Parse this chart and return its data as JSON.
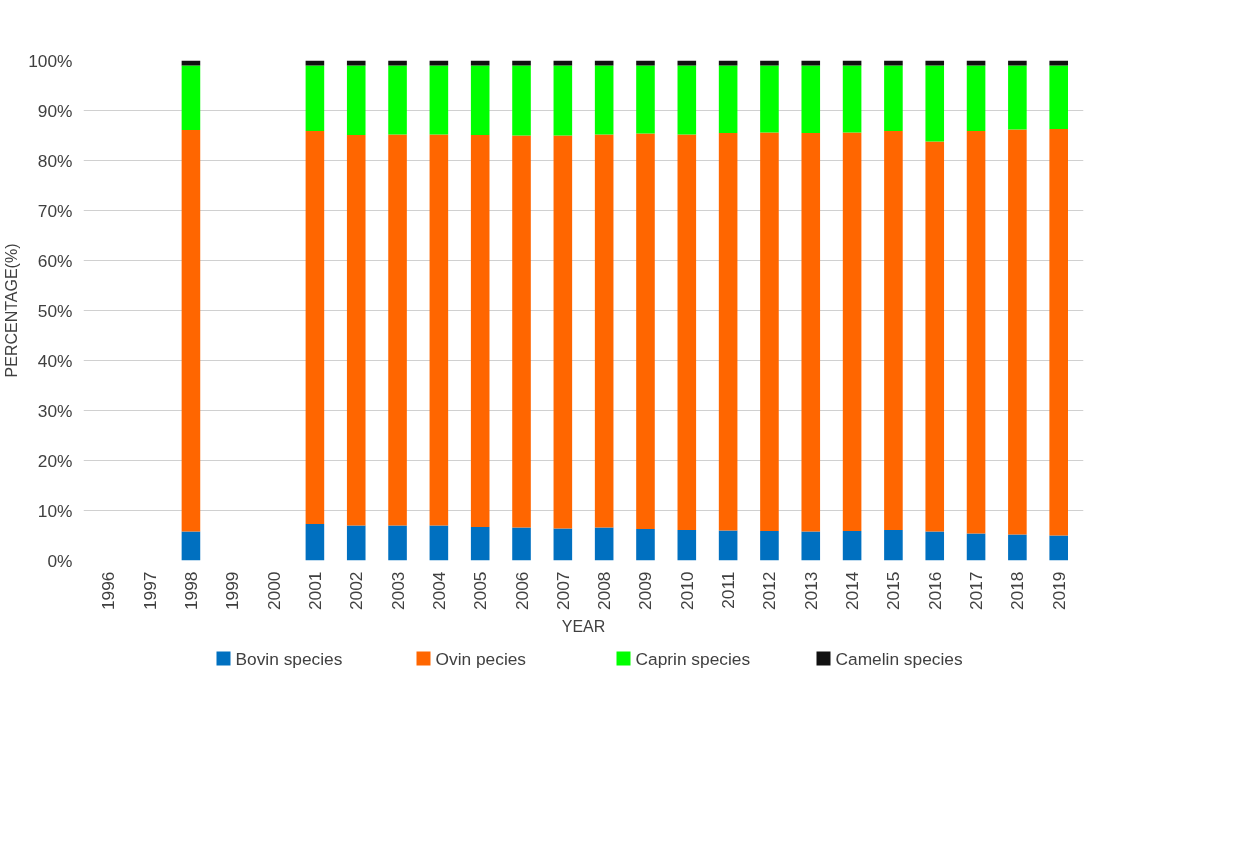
{
  "chart_data": {
    "type": "bar",
    "stacked": true,
    "xlabel": "YEAR",
    "ylabel": "PERCENTAGE(%)",
    "categories": [
      "1996",
      "1997",
      "1998",
      "1999",
      "2000",
      "2001",
      "2002",
      "2003",
      "2004",
      "2005",
      "2006",
      "2007",
      "2008",
      "2009",
      "2010",
      "2011",
      "2012",
      "2013",
      "2014",
      "2015",
      "2016",
      "2017",
      "2018",
      "2019"
    ],
    "series": [
      {
        "name": "Bovin species",
        "color": "#0070c0",
        "values": [
          null,
          null,
          5.8,
          null,
          null,
          7.3,
          7.0,
          7.0,
          7.0,
          6.7,
          6.6,
          6.4,
          6.6,
          6.3,
          6.1,
          6.0,
          5.9,
          5.8,
          5.9,
          6.1,
          5.8,
          5.4,
          5.2,
          5.0
        ]
      },
      {
        "name": "Ovin pecies",
        "color": "#ff6600",
        "values": [
          null,
          null,
          80.3,
          null,
          null,
          78.6,
          78.1,
          78.2,
          78.2,
          78.4,
          78.4,
          78.6,
          78.6,
          79.1,
          79.1,
          79.5,
          79.7,
          79.7,
          79.7,
          79.8,
          78.0,
          80.5,
          81.0,
          81.3
        ]
      },
      {
        "name": "Caprin species",
        "color": "#00ff00",
        "values": [
          null,
          null,
          12.9,
          null,
          null,
          13.1,
          13.9,
          13.8,
          13.8,
          13.9,
          14.0,
          14.0,
          13.8,
          13.6,
          13.8,
          13.5,
          13.4,
          13.5,
          13.4,
          13.1,
          15.2,
          13.1,
          12.8,
          12.7
        ]
      },
      {
        "name": "Camelin species",
        "color": "#111111",
        "values": [
          null,
          null,
          1,
          null,
          null,
          1,
          1,
          1,
          1,
          1,
          1,
          1,
          1,
          1,
          1,
          1,
          1,
          1,
          1,
          1,
          1,
          1,
          1,
          1
        ]
      }
    ],
    "ylim": [
      0,
      100
    ],
    "yticks": [
      {
        "value": 0,
        "label": "0%"
      },
      {
        "value": 10,
        "label": "10%"
      },
      {
        "value": 20,
        "label": "20%"
      },
      {
        "value": 30,
        "label": "30%"
      },
      {
        "value": 40,
        "label": "40%"
      },
      {
        "value": 50,
        "label": "50%"
      },
      {
        "value": 60,
        "label": "60%"
      },
      {
        "value": 70,
        "label": "70%"
      },
      {
        "value": 80,
        "label": "80%"
      },
      {
        "value": 90,
        "label": "90%"
      },
      {
        "value": 100,
        "label": "100%"
      }
    ],
    "grid": "y",
    "legend": "bottom"
  }
}
